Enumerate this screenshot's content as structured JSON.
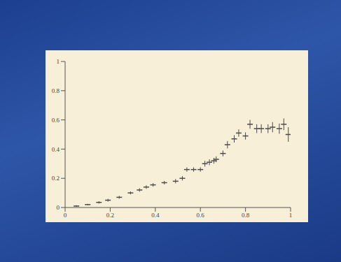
{
  "chart_data": {
    "type": "scatter",
    "x": [
      0.05,
      0.1,
      0.15,
      0.19,
      0.24,
      0.29,
      0.33,
      0.36,
      0.39,
      0.44,
      0.49,
      0.52,
      0.54,
      0.57,
      0.6,
      0.62,
      0.64,
      0.66,
      0.67,
      0.7,
      0.72,
      0.75,
      0.77,
      0.8,
      0.82,
      0.85,
      0.87,
      0.9,
      0.92,
      0.95,
      0.97,
      0.99
    ],
    "values": [
      0.01,
      0.02,
      0.035,
      0.05,
      0.07,
      0.1,
      0.12,
      0.14,
      0.155,
      0.17,
      0.18,
      0.2,
      0.26,
      0.26,
      0.26,
      0.3,
      0.31,
      0.32,
      0.33,
      0.37,
      0.43,
      0.47,
      0.51,
      0.49,
      0.57,
      0.54,
      0.54,
      0.54,
      0.55,
      0.54,
      0.57,
      0.5
    ],
    "errors": [
      0.005,
      0.005,
      0.008,
      0.01,
      0.01,
      0.01,
      0.012,
      0.012,
      0.012,
      0.012,
      0.015,
      0.015,
      0.015,
      0.015,
      0.015,
      0.02,
      0.02,
      0.02,
      0.02,
      0.02,
      0.025,
      0.025,
      0.025,
      0.025,
      0.03,
      0.03,
      0.03,
      0.03,
      0.035,
      0.035,
      0.04,
      0.05
    ],
    "xlim": [
      0,
      1
    ],
    "ylim": [
      0,
      1
    ],
    "xticks": [
      0,
      0.2,
      0.4,
      0.6,
      0.8,
      1
    ],
    "yticks": [
      0,
      0.2,
      0.4,
      0.6,
      0.8,
      1
    ],
    "grid": false,
    "color": "#4a4a4a",
    "marker": "dash"
  }
}
